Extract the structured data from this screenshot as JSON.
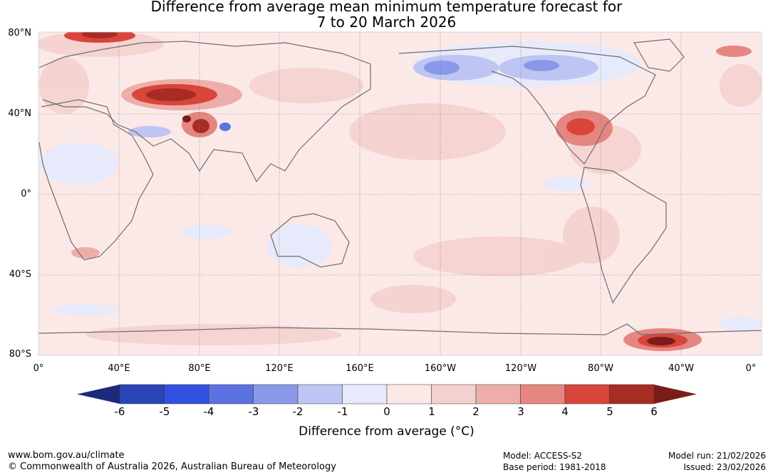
{
  "title": {
    "line1": "Difference from average mean minimum temperature forecast for",
    "line2": "7 to 20 March 2026"
  },
  "map": {
    "lat_labels": [
      "80°N",
      "40°N",
      "0°",
      "40°S",
      "80°S"
    ],
    "lon_labels": [
      "0°",
      "40°E",
      "80°E",
      "120°E",
      "160°E",
      "160°W",
      "120°W",
      "80°W",
      "40°W",
      "0°"
    ]
  },
  "colorbar": {
    "ticks": [
      "-6",
      "-5",
      "-4",
      "-3",
      "-2",
      "-1",
      "0",
      "1",
      "2",
      "3",
      "4",
      "5",
      "6"
    ],
    "colors": [
      "#1b2a7a",
      "#2a45b8",
      "#3152e0",
      "#5b72e2",
      "#8a98ea",
      "#bec5f2",
      "#e6eafa",
      "#fbe9e8",
      "#f4d0ce",
      "#edaeaa",
      "#e58680",
      "#d9453b",
      "#a82b24",
      "#7a1c17"
    ],
    "title": "Difference from average (°C)"
  },
  "footer": {
    "url": "www.bom.gov.au/climate",
    "copyright": "© Commonwealth of Australia 2026, Australian Bureau of Meteorology",
    "model": "Model: ACCESS-S2",
    "base_period": "Base period: 1981-2018",
    "model_run": "Model run: 21/02/2026",
    "issued": "Issued: 23/02/2026"
  }
}
